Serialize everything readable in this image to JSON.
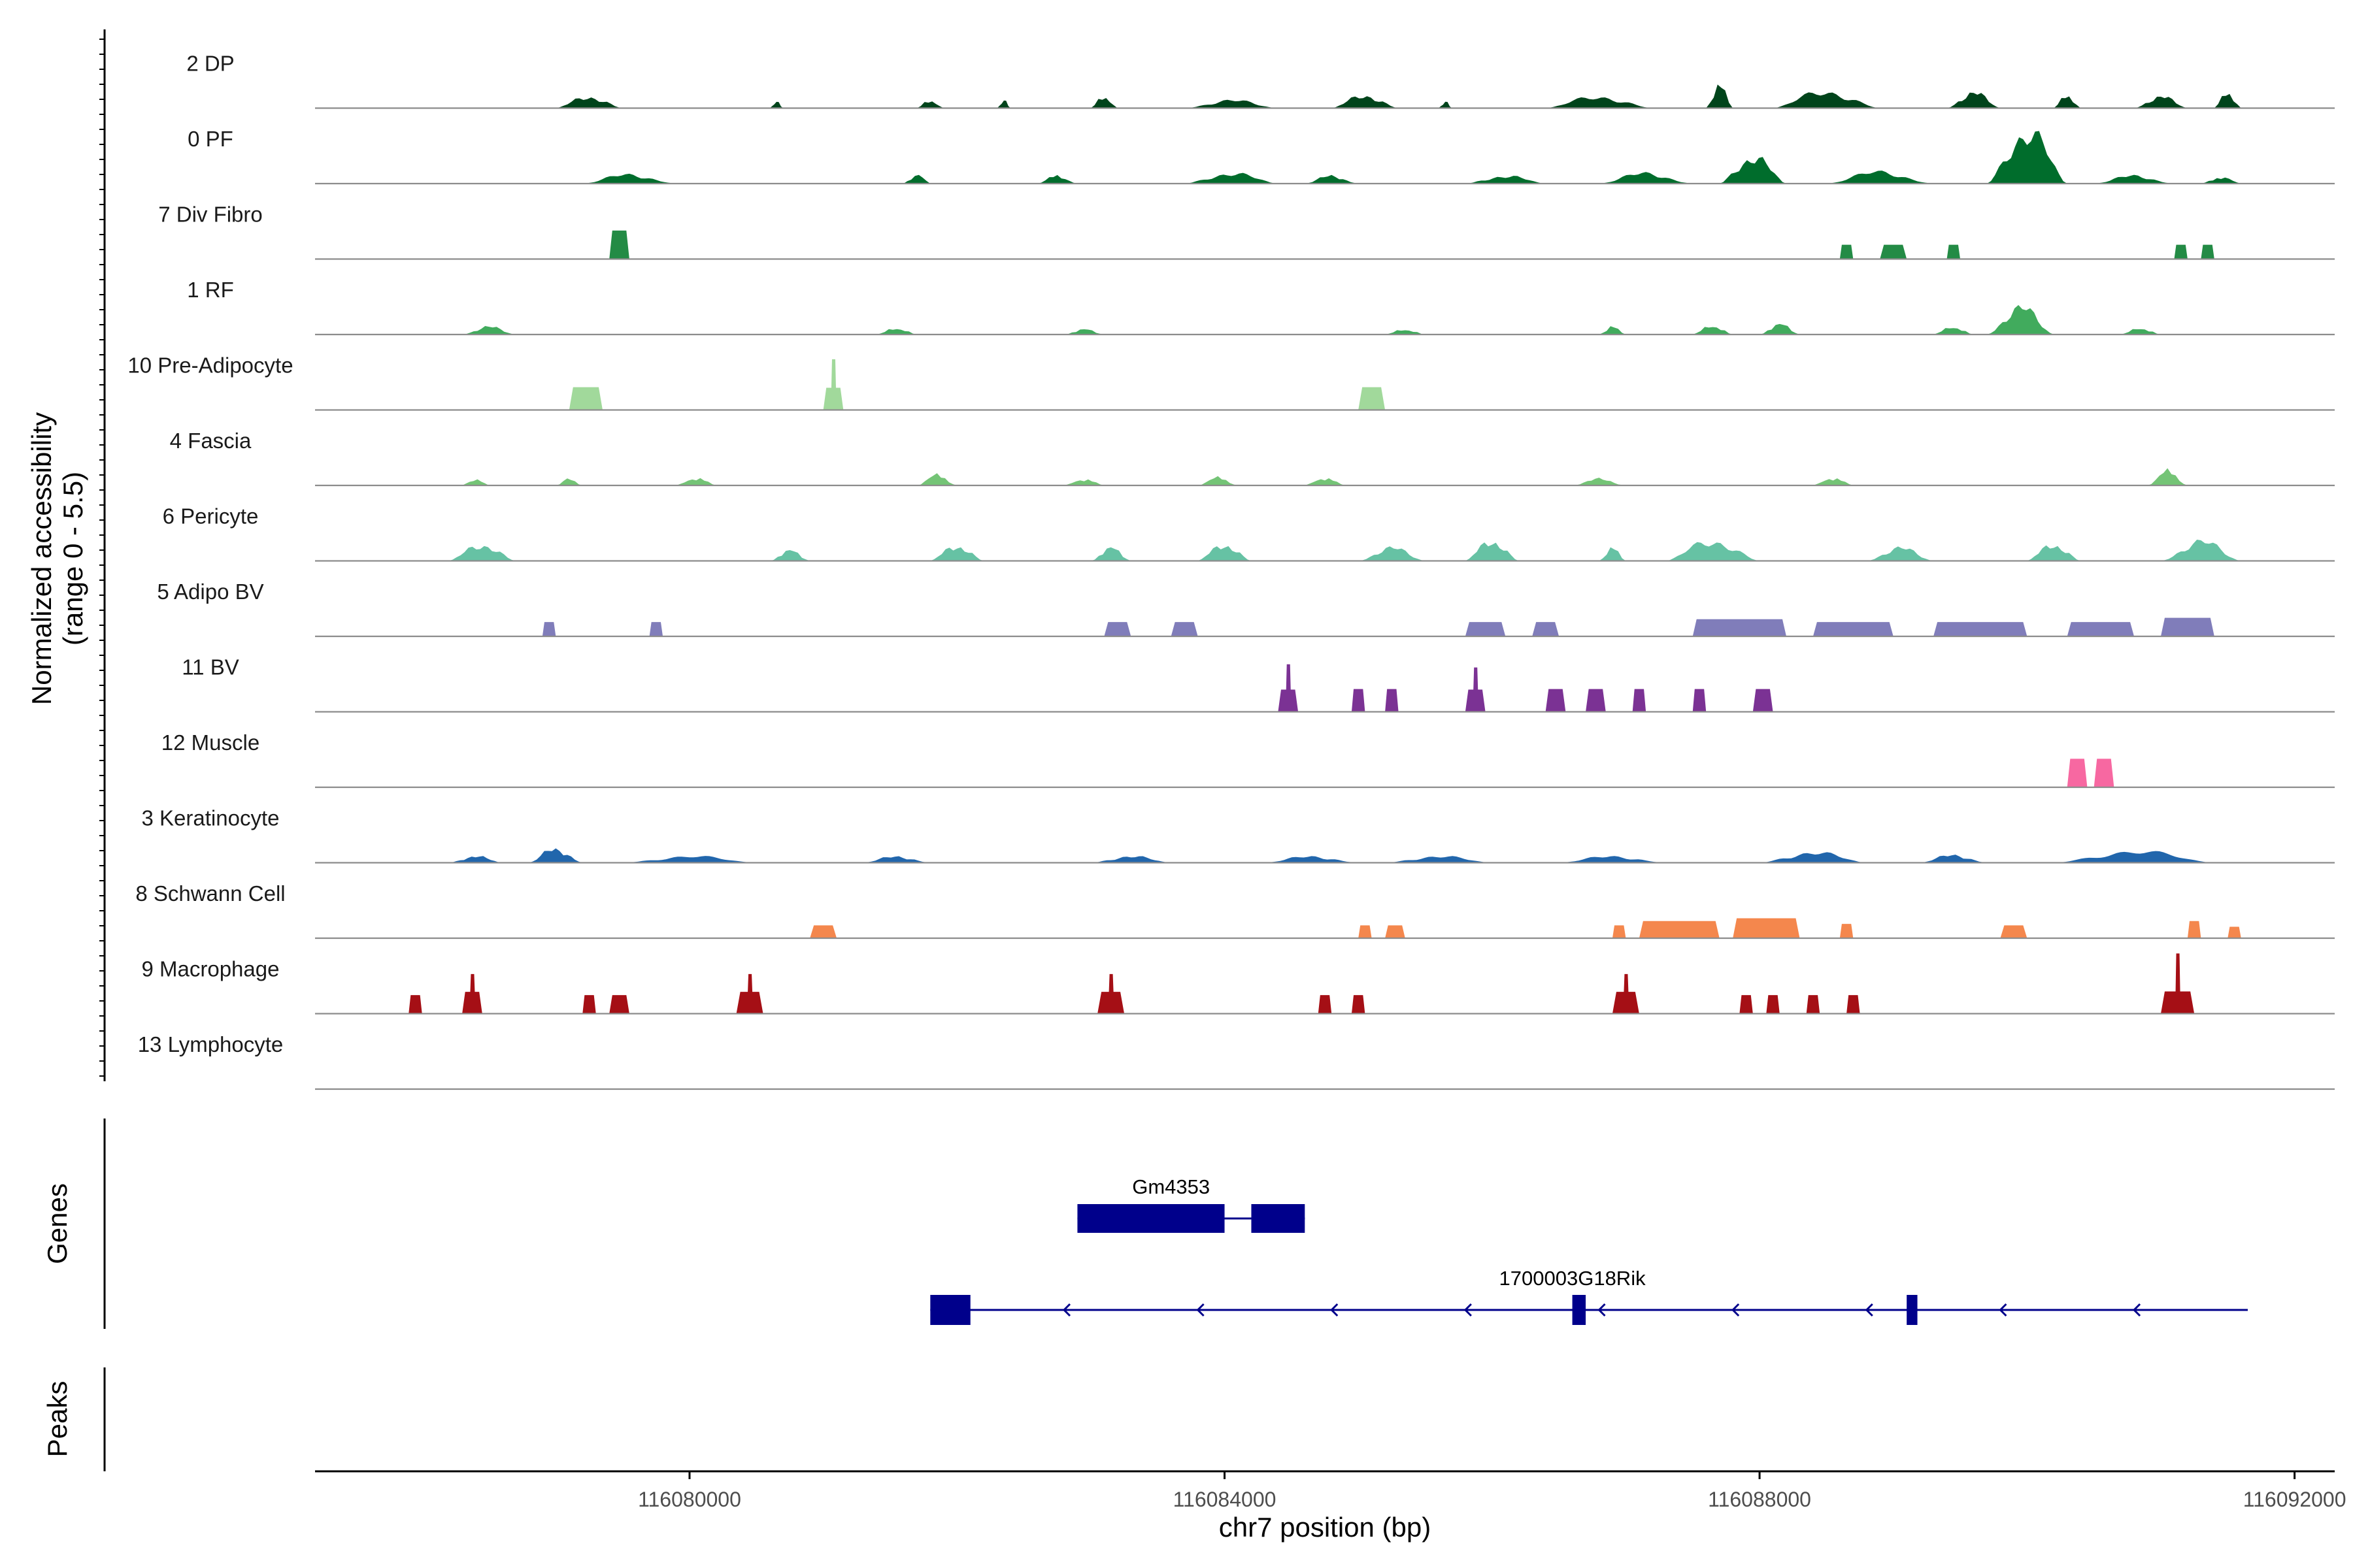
{
  "chart_data": {
    "type": "area",
    "x_axis_label": "chr7 position (bp)",
    "y_axis_label_line1": "Normalized accessibility",
    "y_axis_label_line2": "(range 0 - 5.5)",
    "y_range": [
      0,
      5.5
    ],
    "x_range": [
      116077200,
      116092300
    ],
    "x_ticks": [
      116080000,
      116084000,
      116088000,
      116092000
    ],
    "x_tick_labels": [
      "116080000",
      "116084000",
      "116088000",
      "116092000"
    ],
    "tracks": [
      {
        "name": "2 DP",
        "color": "#00441b",
        "mode": "continuous",
        "peaks": [
          [
            116079000,
            116079500,
            0.9
          ],
          [
            116080600,
            116080700,
            0.5
          ],
          [
            116081700,
            116081900,
            0.6
          ],
          [
            116082300,
            116082400,
            0.6
          ],
          [
            116083000,
            116083200,
            0.9
          ],
          [
            116083700,
            116084400,
            0.6
          ],
          [
            116084800,
            116085300,
            1.0
          ],
          [
            116085600,
            116085700,
            0.5
          ],
          [
            116086400,
            116087200,
            0.9
          ],
          [
            116087600,
            116087800,
            1.8
          ],
          [
            116088100,
            116088900,
            1.3
          ],
          [
            116089400,
            116089800,
            1.2
          ],
          [
            116090200,
            116090400,
            1.0
          ],
          [
            116090800,
            116091200,
            0.9
          ],
          [
            116091400,
            116091600,
            1.2
          ]
        ]
      },
      {
        "name": "0 PF",
        "color": "#006d2c",
        "mode": "continuous",
        "peaks": [
          [
            116079200,
            116079900,
            0.7
          ],
          [
            116081600,
            116081800,
            0.7
          ],
          [
            116082600,
            116082900,
            0.6
          ],
          [
            116083700,
            116084400,
            0.8
          ],
          [
            116084600,
            116085000,
            0.6
          ],
          [
            116085800,
            116086400,
            0.6
          ],
          [
            116086800,
            116087500,
            0.8
          ],
          [
            116087700,
            116088200,
            2.1
          ],
          [
            116088500,
            116089300,
            0.9
          ],
          [
            116089700,
            116090300,
            4.2
          ],
          [
            116090500,
            116091100,
            0.6
          ],
          [
            116091300,
            116091600,
            0.5
          ]
        ]
      },
      {
        "name": "7 Div Fibro",
        "color": "#238b45",
        "mode": "blocks",
        "peaks": [
          [
            116079400,
            116079550,
            2.0
          ],
          [
            116088600,
            116088700,
            1.0
          ],
          [
            116088900,
            116089100,
            1.0
          ],
          [
            116089400,
            116089500,
            1.0
          ],
          [
            116091100,
            116091200,
            1.0
          ],
          [
            116091300,
            116091400,
            1.0
          ]
        ]
      },
      {
        "name": "1 RF",
        "color": "#41ab5d",
        "mode": "continuous",
        "peaks": [
          [
            116078300,
            116078700,
            0.6
          ],
          [
            116081400,
            116081700,
            0.5
          ],
          [
            116082800,
            116083100,
            0.4
          ],
          [
            116085200,
            116085500,
            0.4
          ],
          [
            116086800,
            116087000,
            0.6
          ],
          [
            116087500,
            116087800,
            0.7
          ],
          [
            116088000,
            116088300,
            0.8
          ],
          [
            116089300,
            116089600,
            0.6
          ],
          [
            116089700,
            116090200,
            2.1
          ],
          [
            116090700,
            116091000,
            0.5
          ]
        ]
      },
      {
        "name": "10 Pre-Adipocyte",
        "color": "#a1d99b",
        "mode": "blocks",
        "peaks": [
          [
            116079100,
            116079350,
            1.6
          ],
          [
            116081000,
            116081150,
            3.2
          ],
          [
            116085000,
            116085200,
            1.6
          ]
        ]
      },
      {
        "name": "4 Fascia",
        "color": "#74c476",
        "mode": "continuous",
        "peaks": [
          [
            116078300,
            116078500,
            0.5
          ],
          [
            116079000,
            116079200,
            0.5
          ],
          [
            116079900,
            116080200,
            0.6
          ],
          [
            116081700,
            116082000,
            0.8
          ],
          [
            116082800,
            116083100,
            0.5
          ],
          [
            116083800,
            116084100,
            0.6
          ],
          [
            116084600,
            116084900,
            0.6
          ],
          [
            116086600,
            116087000,
            0.5
          ],
          [
            116088400,
            116088700,
            0.6
          ],
          [
            116090900,
            116091200,
            1.1
          ]
        ]
      },
      {
        "name": "6 Pericyte",
        "color": "#66c2a4",
        "mode": "continuous",
        "peaks": [
          [
            116078200,
            116078700,
            1.3
          ],
          [
            116080600,
            116080900,
            0.8
          ],
          [
            116081800,
            116082200,
            1.2
          ],
          [
            116083000,
            116083300,
            1.0
          ],
          [
            116083800,
            116084200,
            1.3
          ],
          [
            116085000,
            116085500,
            1.0
          ],
          [
            116085800,
            116086200,
            1.6
          ],
          [
            116086800,
            116087000,
            1.0
          ],
          [
            116087300,
            116088000,
            1.6
          ],
          [
            116088800,
            116089300,
            1.0
          ],
          [
            116090000,
            116090400,
            1.3
          ],
          [
            116091000,
            116091600,
            1.5
          ]
        ]
      },
      {
        "name": "5 Adipo BV",
        "color": "#807dba",
        "mode": "blocks",
        "peaks": [
          [
            116078900,
            116079000,
            1.0
          ],
          [
            116079700,
            116079800,
            1.0
          ],
          [
            116083100,
            116083300,
            1.0
          ],
          [
            116083600,
            116083800,
            1.0
          ],
          [
            116085800,
            116086100,
            1.0
          ],
          [
            116086300,
            116086500,
            1.0
          ],
          [
            116087500,
            116088200,
            1.2
          ],
          [
            116088400,
            116089000,
            1.0
          ],
          [
            116089300,
            116090000,
            1.0
          ],
          [
            116090300,
            116090800,
            1.0
          ],
          [
            116091000,
            116091400,
            1.3
          ]
        ]
      },
      {
        "name": "11 BV",
        "color": "#7b3294",
        "mode": "blocks",
        "peaks": [
          [
            116084400,
            116084550,
            3.0
          ],
          [
            116084950,
            116085050,
            1.6
          ],
          [
            116085200,
            116085300,
            1.6
          ],
          [
            116085800,
            116085950,
            2.8
          ],
          [
            116086400,
            116086550,
            1.6
          ],
          [
            116086700,
            116086850,
            1.6
          ],
          [
            116087050,
            116087150,
            1.6
          ],
          [
            116087500,
            116087600,
            1.6
          ],
          [
            116087950,
            116088100,
            1.6
          ]
        ]
      },
      {
        "name": "12 Muscle",
        "color": "#f768a1",
        "mode": "blocks",
        "peaks": [
          [
            116090300,
            116090450,
            2.0
          ],
          [
            116090500,
            116090650,
            2.0
          ]
        ]
      },
      {
        "name": "3 Keratinocyte",
        "color": "#2166ac",
        "mode": "continuous",
        "peaks": [
          [
            116078200,
            116078600,
            0.5
          ],
          [
            116078800,
            116079200,
            1.1
          ],
          [
            116079500,
            116080500,
            0.5
          ],
          [
            116081300,
            116081800,
            0.5
          ],
          [
            116083000,
            116083600,
            0.5
          ],
          [
            116084300,
            116085000,
            0.5
          ],
          [
            116085200,
            116086000,
            0.5
          ],
          [
            116086500,
            116087300,
            0.5
          ],
          [
            116088000,
            116088800,
            0.8
          ],
          [
            116089200,
            116089700,
            0.6
          ],
          [
            116090200,
            116091400,
            0.9
          ]
        ]
      },
      {
        "name": "8 Schwann Cell",
        "color": "#f4874d",
        "mode": "blocks",
        "peaks": [
          [
            116080900,
            116081100,
            0.9
          ],
          [
            116085000,
            116085100,
            0.9
          ],
          [
            116085200,
            116085350,
            0.9
          ],
          [
            116086900,
            116087000,
            0.9
          ],
          [
            116087100,
            116087700,
            1.2
          ],
          [
            116087800,
            116088300,
            1.4
          ],
          [
            116088600,
            116088700,
            1.0
          ],
          [
            116089800,
            116090000,
            0.9
          ],
          [
            116091200,
            116091300,
            1.2
          ],
          [
            116091500,
            116091600,
            0.8
          ]
        ]
      },
      {
        "name": "9 Macrophage",
        "color": "#a50f15",
        "mode": "blocks",
        "peaks": [
          [
            116077900,
            116078000,
            1.3
          ],
          [
            116078300,
            116078450,
            2.5
          ],
          [
            116079200,
            116079300,
            1.3
          ],
          [
            116079400,
            116079550,
            1.3
          ],
          [
            116080350,
            116080550,
            2.5
          ],
          [
            116083050,
            116083250,
            2.5
          ],
          [
            116084700,
            116084800,
            1.3
          ],
          [
            116084950,
            116085050,
            1.3
          ],
          [
            116086900,
            116087100,
            2.5
          ],
          [
            116087850,
            116087950,
            1.3
          ],
          [
            116088050,
            116088150,
            1.3
          ],
          [
            116088350,
            116088450,
            1.3
          ],
          [
            116088650,
            116088750,
            1.3
          ],
          [
            116091000,
            116091250,
            3.8
          ]
        ]
      },
      {
        "name": "13 Lymphocyte",
        "color": "#08519c",
        "mode": "blocks",
        "peaks": []
      }
    ],
    "genes": [
      {
        "name": "Gm4353",
        "start": 116082900,
        "end": 116084600,
        "strand": "+",
        "exons": [
          [
            116082900,
            116084000
          ],
          [
            116084200,
            116084600
          ]
        ]
      },
      {
        "name": "1700003G18Rik",
        "start": 116081800,
        "end": 116091650,
        "strand": "-",
        "exons": [
          [
            116081800,
            116082100
          ],
          [
            116086600,
            116086700
          ],
          [
            116089100,
            116089180
          ]
        ]
      }
    ],
    "gene_color": "#00008b",
    "panel_titles": {
      "genes": "Genes",
      "peaks": "Peaks"
    }
  }
}
